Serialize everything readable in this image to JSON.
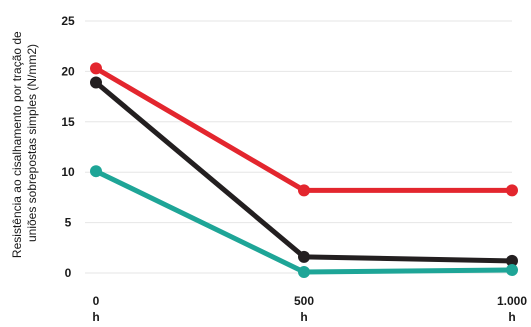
{
  "chart_data": {
    "type": "line",
    "title": "",
    "ylabel_lines": [
      "Resistência ao cisalhamento por tração de",
      "uniões sobrepostas simples (N/mm2)"
    ],
    "xlabel": "",
    "x": [
      0,
      500,
      1000
    ],
    "x_tick_labels": [
      [
        "0",
        "h"
      ],
      [
        "500",
        "h"
      ],
      [
        "1.000",
        "h"
      ]
    ],
    "y_ticks": [
      0,
      5,
      10,
      15,
      20,
      25
    ],
    "ylim": [
      0,
      25
    ],
    "grid": true,
    "series": [
      {
        "color": "#e3262e",
        "values": [
          20.3,
          8.2,
          8.2
        ]
      },
      {
        "color": "#231f20",
        "values": [
          18.9,
          1.6,
          1.2
        ]
      },
      {
        "color": "#1ea597",
        "values": [
          10.1,
          0.1,
          0.3
        ]
      }
    ]
  }
}
